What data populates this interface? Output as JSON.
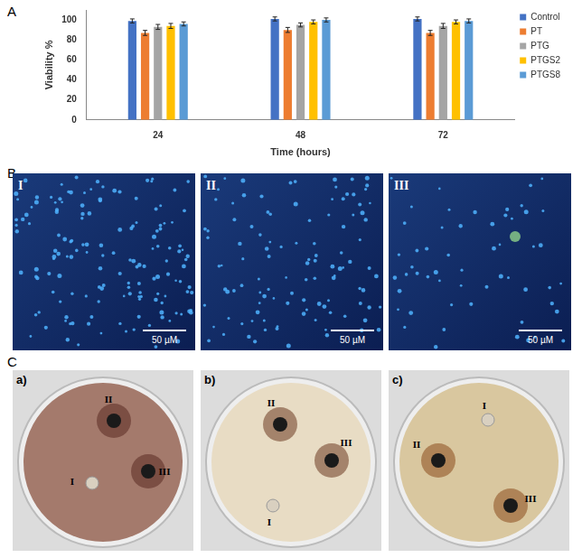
{
  "panel_labels": [
    "A",
    "B",
    "C"
  ],
  "chart_data": {
    "type": "bar",
    "x_label": "Time (hours)",
    "y_label": "Viability %",
    "categories": [
      "24",
      "48",
      "72"
    ],
    "series": [
      {
        "name": "Control",
        "color": "#4472c4",
        "values": [
          99,
          101,
          101
        ],
        "errors": [
          2,
          2,
          2
        ]
      },
      {
        "name": "PT",
        "color": "#ed7d31",
        "values": [
          87,
          90,
          87
        ],
        "errors": [
          2.5,
          2.5,
          2.5
        ]
      },
      {
        "name": "PTG",
        "color": "#a5a5a5",
        "values": [
          93,
          95,
          94
        ],
        "errors": [
          2.5,
          2,
          2.5
        ]
      },
      {
        "name": "PTGS2",
        "color": "#ffc000",
        "values": [
          94,
          98,
          98
        ],
        "errors": [
          2.5,
          2,
          2
        ]
      },
      {
        "name": "PTGS8",
        "color": "#5b9bd5",
        "values": [
          96,
          100,
          99
        ],
        "errors": [
          2,
          2,
          2
        ]
      }
    ],
    "ylim": [
      0,
      110
    ],
    "yticks": [
      0,
      20,
      40,
      60,
      80,
      100
    ],
    "grid": false,
    "legend": "top-right"
  },
  "microscopy": [
    {
      "label": "I",
      "scale_bar": "50 µM"
    },
    {
      "label": "II",
      "scale_bar": "50 µM"
    },
    {
      "label": "III",
      "scale_bar": "50 µM"
    }
  ],
  "plates": [
    {
      "label": "a)",
      "wells": [
        "I",
        "II",
        "III"
      ]
    },
    {
      "label": "b)",
      "wells": [
        "I",
        "II",
        "III"
      ]
    },
    {
      "label": "c)",
      "wells": [
        "I",
        "II",
        "III"
      ]
    }
  ]
}
